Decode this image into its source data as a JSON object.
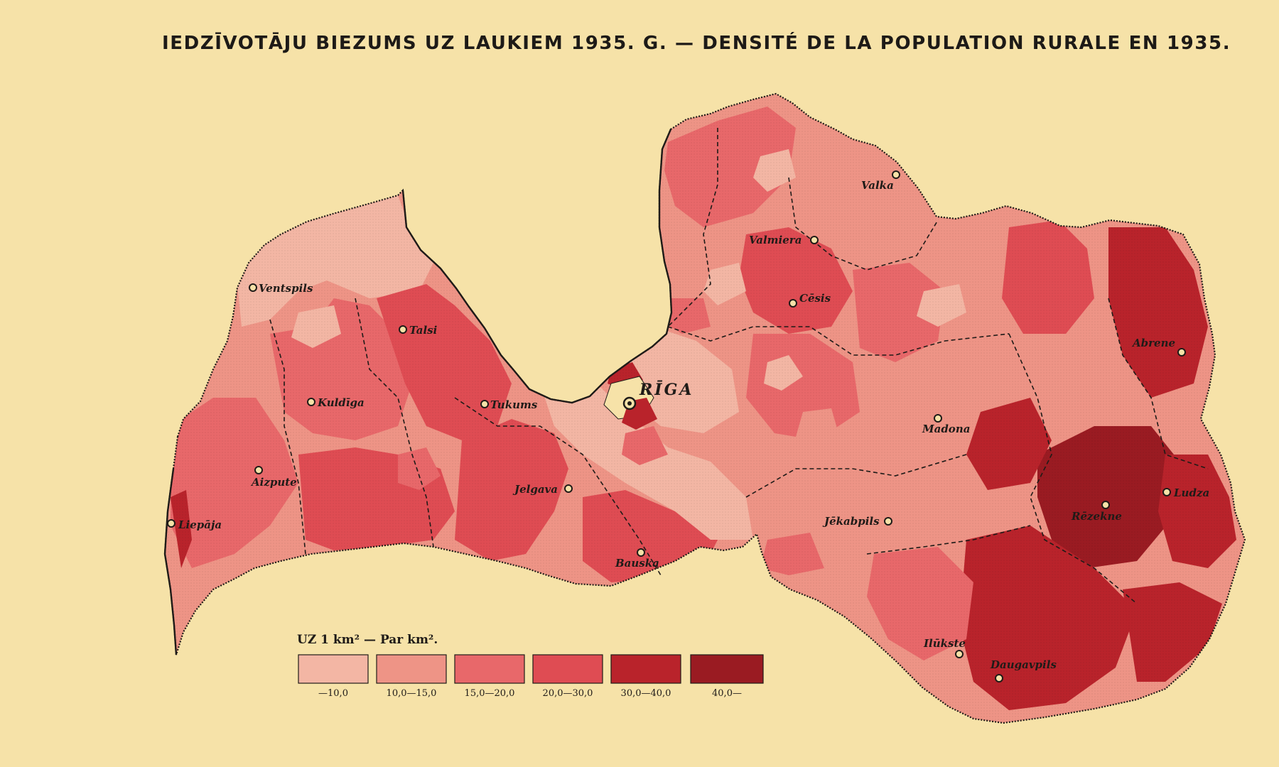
{
  "map": {
    "title": "IEDZĪVOTĀJU BIEZUMS UZ LAUKIEM 1935. G. — DENSITÉ DE LA POPULATION RURALE EN 1935.",
    "background_color": "#f6e2a8",
    "border_color": "#1f1b18",
    "cities": [
      {
        "id": "ventspils",
        "name": "Ventspils"
      },
      {
        "id": "talsi",
        "name": "Talsi"
      },
      {
        "id": "kuldiga",
        "name": "Kuldīga"
      },
      {
        "id": "tukums",
        "name": "Tukums"
      },
      {
        "id": "aizpute",
        "name": "Aizpute"
      },
      {
        "id": "liepaja",
        "name": "Liepāja"
      },
      {
        "id": "jelgava",
        "name": "Jelgava"
      },
      {
        "id": "bauska",
        "name": "Bauska"
      },
      {
        "id": "riga",
        "name": "RĪGA"
      },
      {
        "id": "valka",
        "name": "Valka"
      },
      {
        "id": "valmiera",
        "name": "Valmiera"
      },
      {
        "id": "cesis",
        "name": "Cēsis"
      },
      {
        "id": "abrene",
        "name": "Abrene"
      },
      {
        "id": "madona",
        "name": "Madona"
      },
      {
        "id": "ludza",
        "name": "Ludza"
      },
      {
        "id": "rezekne",
        "name": "Rēzekne"
      },
      {
        "id": "jekabpils",
        "name": "Jēkabpils"
      },
      {
        "id": "ilukste",
        "name": "Ilūkste"
      },
      {
        "id": "daugavpils",
        "name": "Daugavpils"
      }
    ]
  },
  "legend": {
    "title": "UZ 1 km² — Par km².",
    "classes": [
      {
        "label": "—10,0",
        "color": "#f3b6a4"
      },
      {
        "label": "10,0—15,0",
        "color": "#ee9486"
      },
      {
        "label": "15,0—20,0",
        "color": "#e8686a"
      },
      {
        "label": "20,0—30,0",
        "color": "#df4c53"
      },
      {
        "label": "30,0—40,0",
        "color": "#b9232b"
      },
      {
        "label": "40,0—",
        "color": "#9a1b22"
      }
    ]
  }
}
